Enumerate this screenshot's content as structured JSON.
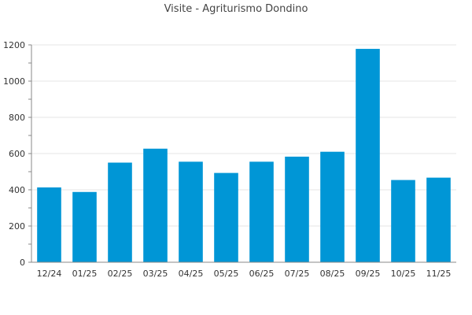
{
  "title": "Visite - Agriturismo Dondino",
  "colors": {
    "bar": "#0096d6",
    "grid": "#e6e6e6",
    "axis": "#888888"
  },
  "chart_data": {
    "type": "bar",
    "title": "Visite - Agriturismo Dondino",
    "xlabel": "",
    "ylabel": "",
    "categories": [
      "12/24",
      "01/25",
      "02/25",
      "03/25",
      "04/25",
      "05/25",
      "06/25",
      "07/25",
      "08/25",
      "09/25",
      "10/25",
      "11/25"
    ],
    "values": [
      413,
      388,
      550,
      627,
      555,
      493,
      555,
      583,
      610,
      1178,
      454,
      467
    ],
    "ylim": [
      0,
      1200
    ],
    "yticks": [
      0,
      200,
      400,
      600,
      800,
      1000,
      1200
    ],
    "grid": true,
    "legend": "none"
  }
}
